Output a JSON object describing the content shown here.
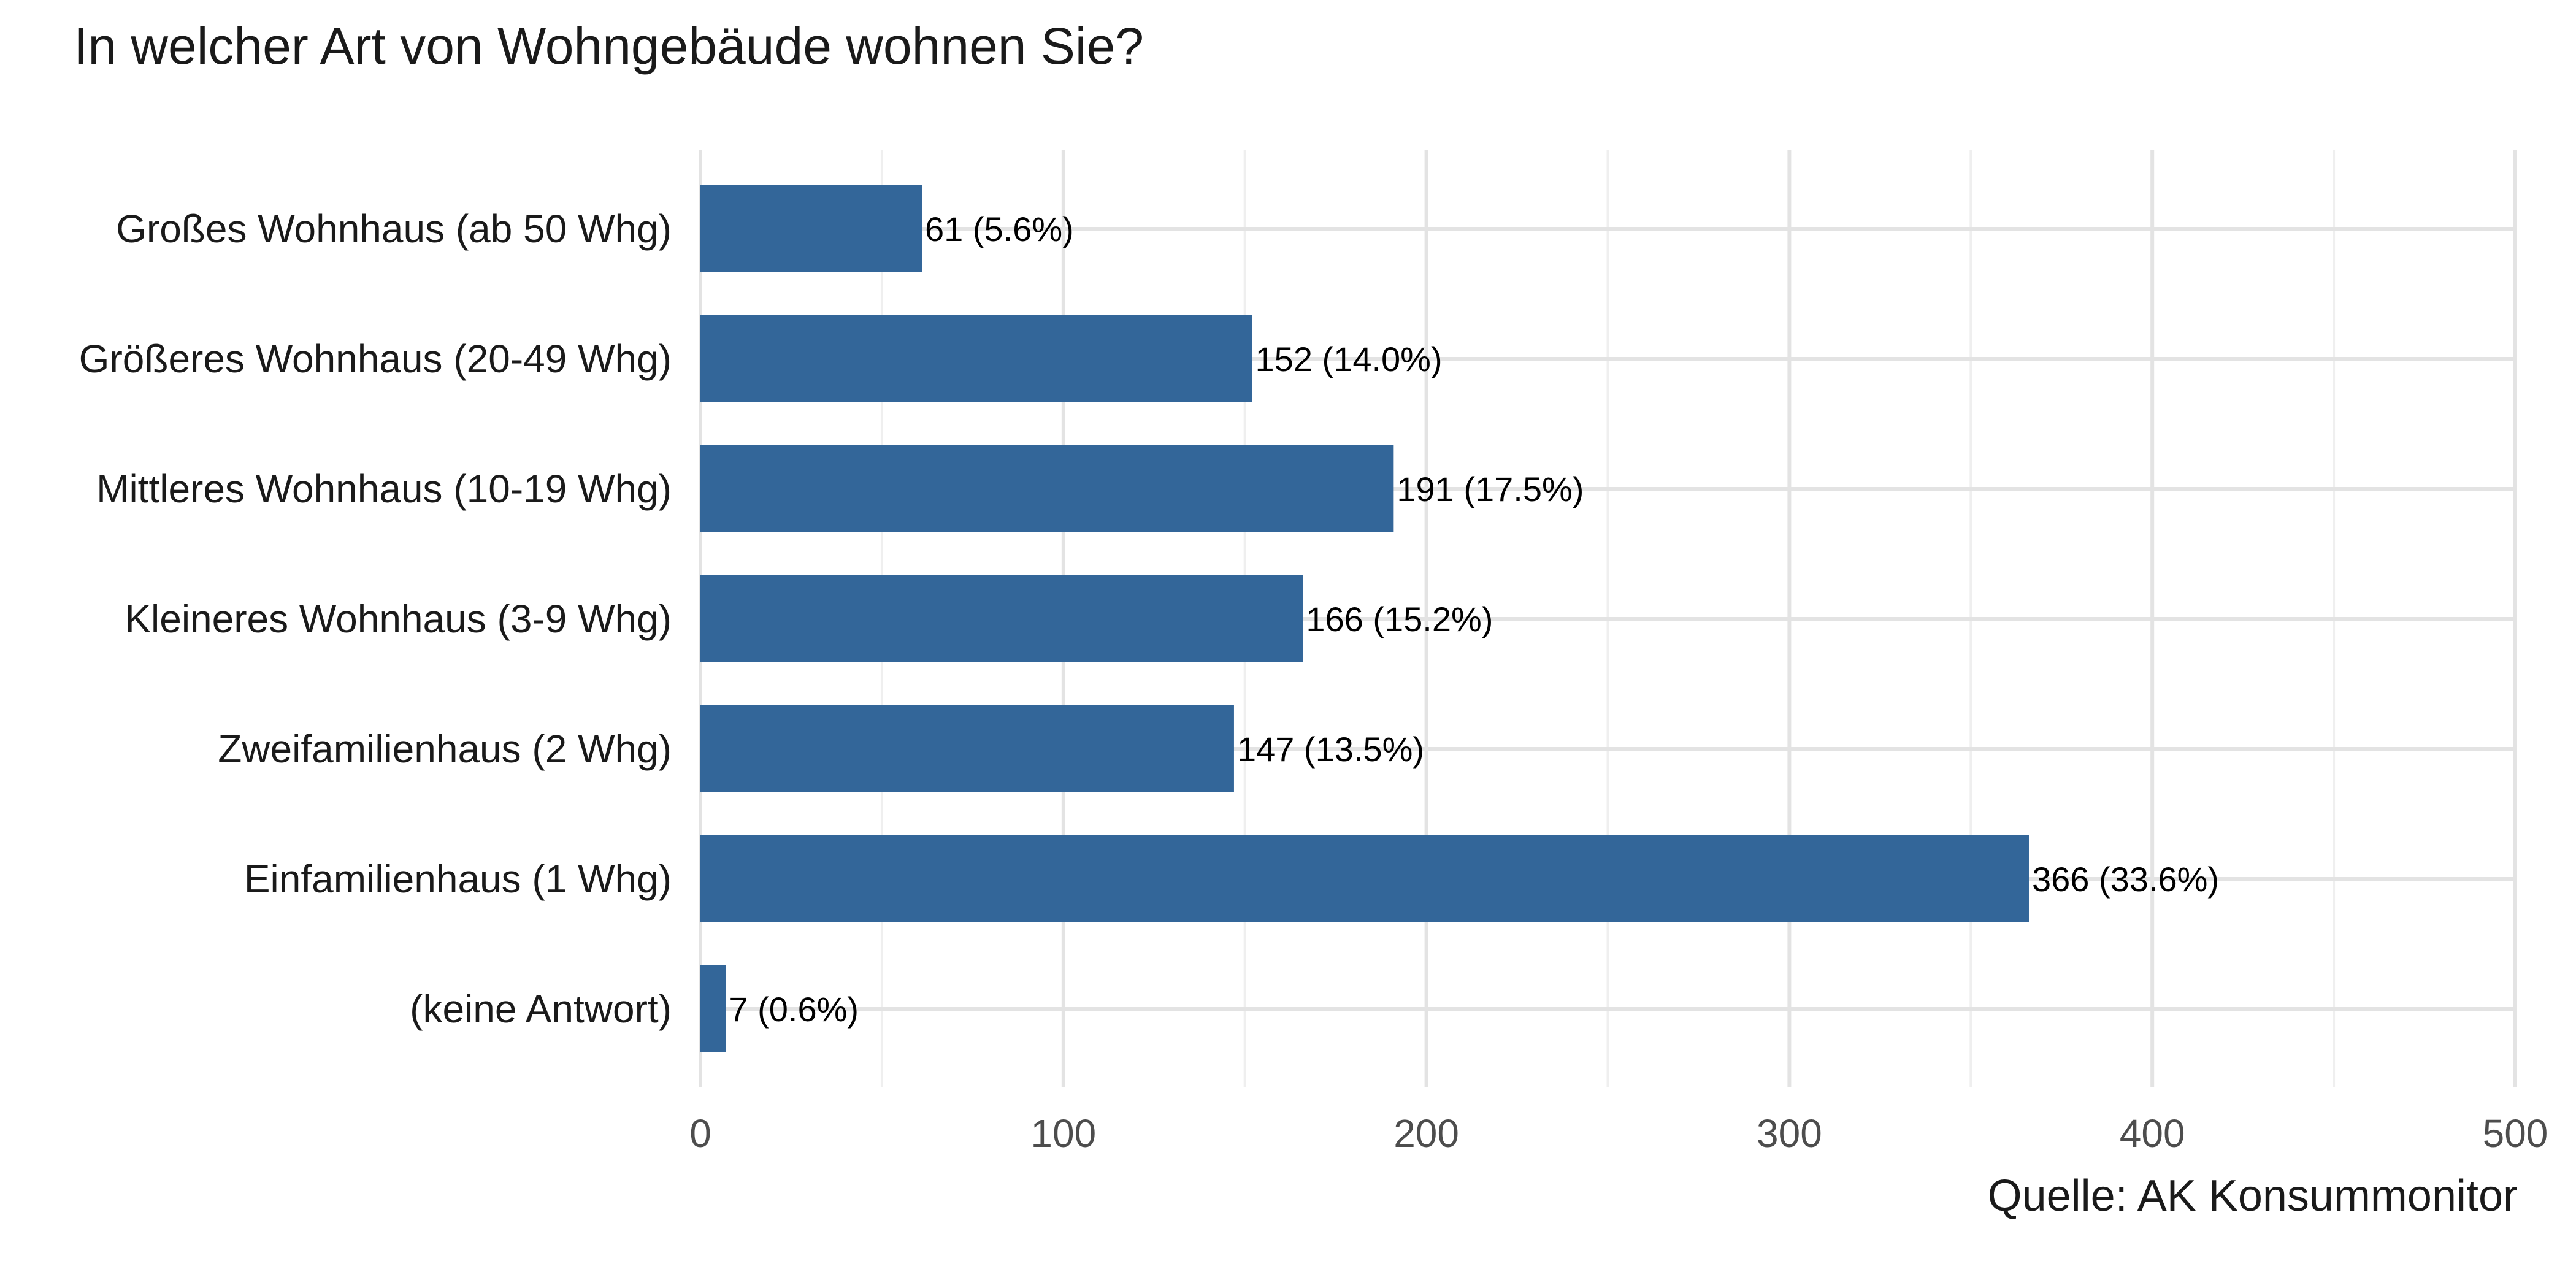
{
  "chart_data": {
    "type": "bar",
    "orientation": "horizontal",
    "title": "In welcher Art von Wohngebäude wohnen Sie?",
    "caption": "Quelle: AK Konsummonitor",
    "xlabel": "",
    "ylabel": "",
    "xlim": [
      0,
      500
    ],
    "x_ticks": [
      "0",
      "100",
      "200",
      "300",
      "400",
      "500"
    ],
    "grid": true,
    "bar_color": "#336699",
    "categories": [
      "Großes Wohnhaus (ab 50 Whg)",
      "Größeres Wohnhaus (20-49 Whg)",
      "Mittleres Wohnhaus (10-19 Whg)",
      "Kleineres Wohnhaus (3-9 Whg)",
      "Zweifamilienhaus (2 Whg)",
      "Einfamilienhaus (1 Whg)",
      "(keine Antwort)"
    ],
    "values": [
      61,
      152,
      191,
      166,
      147,
      366,
      7
    ],
    "data_labels": [
      "61 (5.6%)",
      "152 (14.0%)",
      "191 (17.5%)",
      "166 (15.2%)",
      "147 (13.5%)",
      "366 (33.6%)",
      "7 (0.6%)"
    ]
  }
}
